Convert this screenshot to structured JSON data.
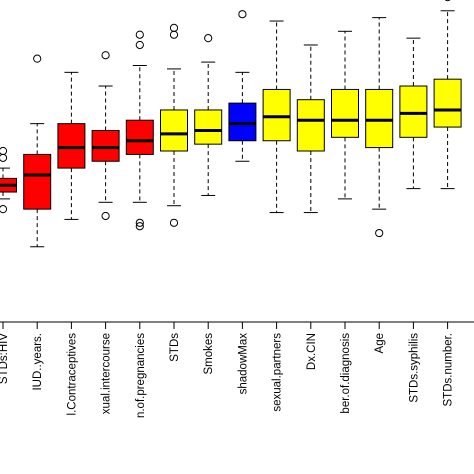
{
  "chart_data": {
    "type": "boxplot",
    "xlabel": "",
    "ylabel": "",
    "ylim": [
      0,
      10
    ],
    "grid": false,
    "legend": "none",
    "colors": {
      "rejected": "#ff0000",
      "shadow": "#0000ff",
      "confirmed": "#ffff00",
      "whisker": "#000000"
    },
    "categories": [
      "STDs:HIV",
      "IUD..years.",
      "l.Contraceptives",
      "xual.intercourse",
      "n.of.pregnancies",
      "STDs",
      "Smokes",
      "shadowMax",
      "sexual.partners",
      "Dx.CIN",
      "ber.of.diagnosis",
      "Age",
      "STDs.syphilis",
      "STDs.number."
    ],
    "boxes": [
      {
        "group": "rejected",
        "min": 3.6,
        "q1": 3.8,
        "median": 4.0,
        "q3": 4.2,
        "max": 4.5,
        "outliers": [
          3.3,
          4.8,
          5.0
        ]
      },
      {
        "group": "rejected",
        "min": 2.2,
        "q1": 3.3,
        "median": 4.3,
        "q3": 4.9,
        "max": 5.8,
        "outliers": [
          7.7
        ]
      },
      {
        "group": "rejected",
        "min": 3.0,
        "q1": 4.5,
        "median": 5.1,
        "q3": 5.8,
        "max": 7.3,
        "outliers": []
      },
      {
        "group": "rejected",
        "min": 3.5,
        "q1": 4.7,
        "median": 5.1,
        "q3": 5.6,
        "max": 6.9,
        "outliers": [
          3.1,
          7.8
        ]
      },
      {
        "group": "rejected",
        "min": 3.5,
        "q1": 4.9,
        "median": 5.3,
        "q3": 5.9,
        "max": 7.5,
        "outliers": [
          2.8,
          2.9,
          8.1,
          8.4
        ]
      },
      {
        "group": "confirmed",
        "min": 3.4,
        "q1": 5.0,
        "median": 5.5,
        "q3": 6.2,
        "max": 7.4,
        "outliers": [
          2.9,
          8.4,
          8.6
        ]
      },
      {
        "group": "confirmed",
        "min": 3.7,
        "q1": 5.2,
        "median": 5.6,
        "q3": 6.2,
        "max": 7.6,
        "outliers": [
          8.3
        ]
      },
      {
        "group": "shadow",
        "min": 4.7,
        "q1": 5.3,
        "median": 5.8,
        "q3": 6.4,
        "max": 7.3,
        "outliers": [
          9.0,
          9.9
        ]
      },
      {
        "group": "confirmed",
        "min": 3.2,
        "q1": 5.3,
        "median": 6.0,
        "q3": 6.8,
        "max": 8.8,
        "outliers": []
      },
      {
        "group": "confirmed",
        "min": 3.2,
        "q1": 5.0,
        "median": 5.9,
        "q3": 6.5,
        "max": 8.1,
        "outliers": []
      },
      {
        "group": "confirmed",
        "min": 3.6,
        "q1": 5.4,
        "median": 5.9,
        "q3": 6.8,
        "max": 8.5,
        "outliers": []
      },
      {
        "group": "confirmed",
        "min": 3.3,
        "q1": 5.1,
        "median": 5.9,
        "q3": 6.8,
        "max": 8.9,
        "outliers": [
          2.6
        ]
      },
      {
        "group": "confirmed",
        "min": 3.9,
        "q1": 5.4,
        "median": 6.1,
        "q3": 6.9,
        "max": 8.3,
        "outliers": []
      },
      {
        "group": "confirmed",
        "min": 3.9,
        "q1": 5.7,
        "median": 6.2,
        "q3": 7.1,
        "max": 9.1,
        "outliers": [
          9.5
        ]
      }
    ]
  }
}
